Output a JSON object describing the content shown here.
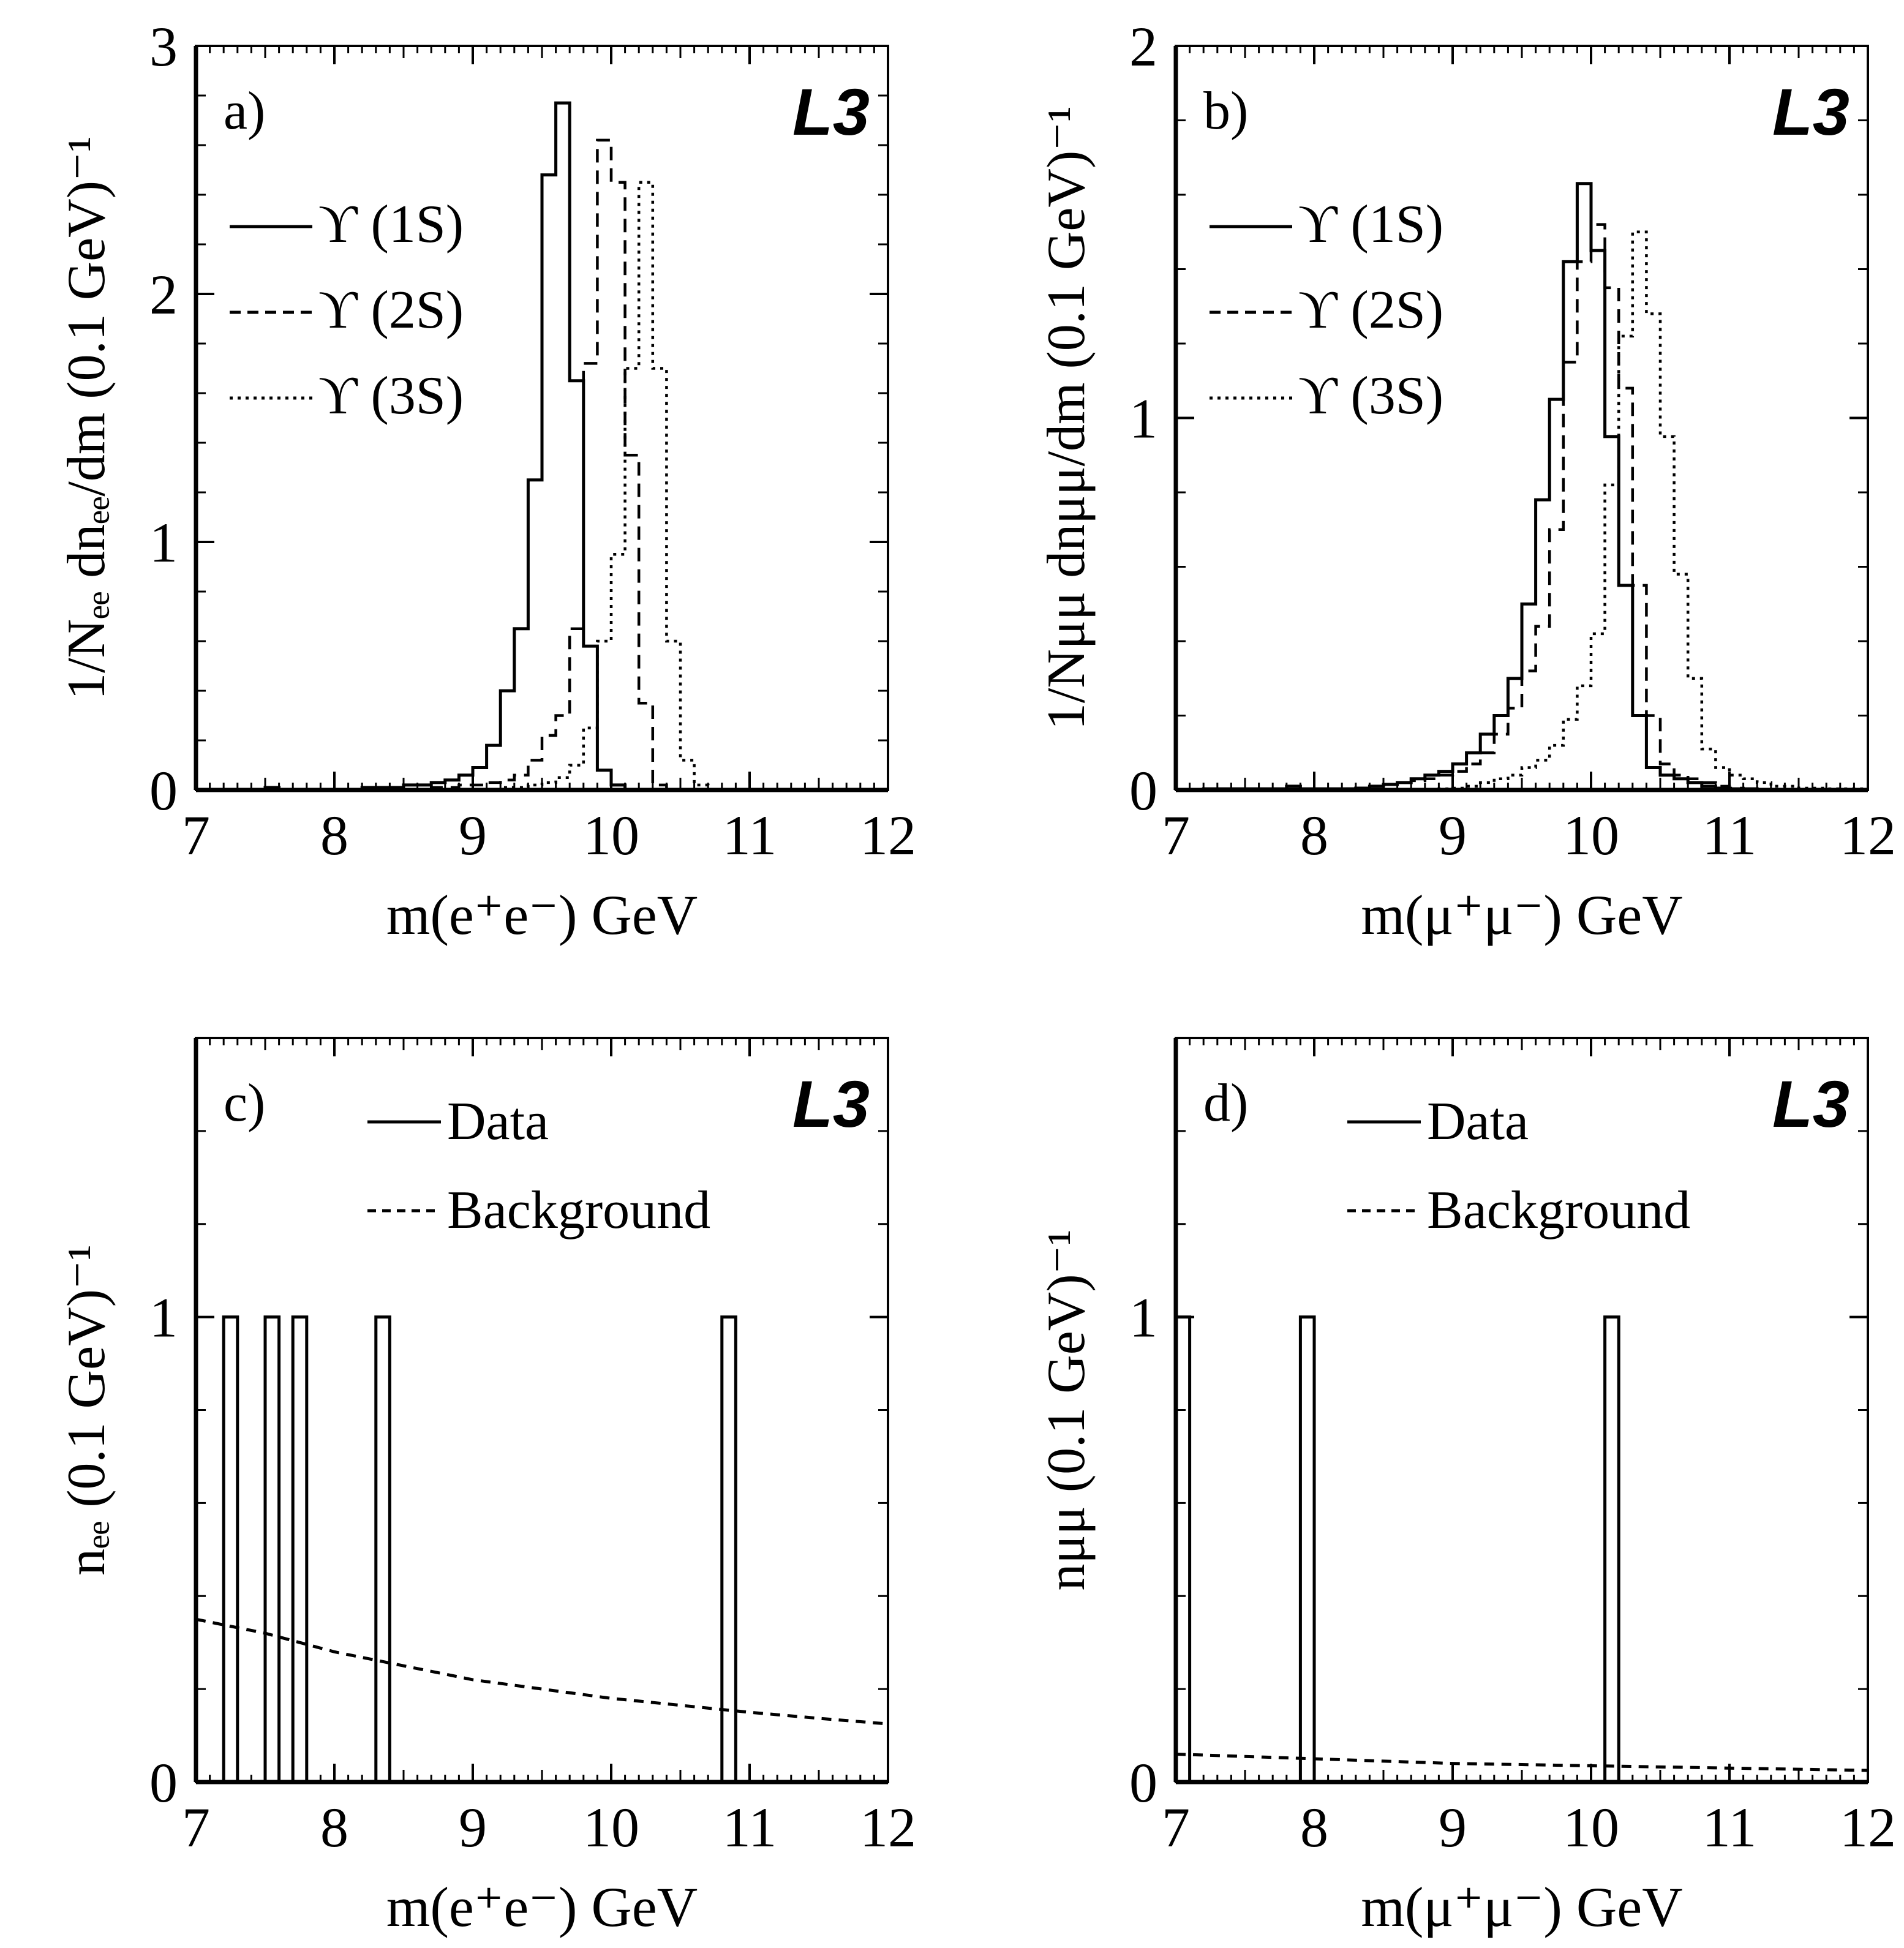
{
  "chart_data": [
    {
      "type": "histogram",
      "panel_label": "a)",
      "experiment": "L3",
      "xlabel": "m(e⁺e⁻)   GeV",
      "ylabel": "1/Nₑₑ dnₑₑ/dm   (0.1 GeV)⁻¹",
      "xlim": [
        7,
        12
      ],
      "ylim": [
        0,
        3
      ],
      "xticks": [
        "7",
        "8",
        "9",
        "10",
        "11",
        "12"
      ],
      "yticks": [
        "0",
        "1",
        "2",
        "3"
      ],
      "x_bin_edges_start": 7.0,
      "bin_width": 0.1,
      "legend": [
        "ϒ (1S)",
        "ϒ (2S)",
        "ϒ (3S)"
      ],
      "series": [
        {
          "name": "ϒ (1S)",
          "style": "solid",
          "values": [
            0,
            0,
            0,
            0,
            0,
            0.01,
            0,
            0,
            0,
            0,
            0,
            0,
            0.01,
            0.01,
            0.01,
            0.02,
            0.02,
            0.03,
            0.04,
            0.06,
            0.09,
            0.18,
            0.4,
            0.65,
            1.25,
            2.48,
            2.77,
            1.65,
            0.58,
            0.08,
            0.02,
            0,
            0,
            0,
            0,
            0,
            0,
            0,
            0,
            0,
            0,
            0,
            0,
            0,
            0,
            0,
            0,
            0,
            0,
            0
          ]
        },
        {
          "name": "ϒ (2S)",
          "style": "dashed",
          "values": [
            0,
            0,
            0,
            0,
            0,
            0,
            0,
            0,
            0,
            0,
            0,
            0,
            0,
            0,
            0,
            0,
            0,
            0.01,
            0.01,
            0.02,
            0.02,
            0.03,
            0.04,
            0.06,
            0.12,
            0.22,
            0.3,
            0.65,
            1.72,
            2.62,
            2.45,
            1.35,
            0.35,
            0.02,
            0,
            0,
            0,
            0,
            0,
            0,
            0,
            0,
            0,
            0,
            0,
            0,
            0,
            0,
            0,
            0
          ]
        },
        {
          "name": "ϒ (3S)",
          "style": "dotted",
          "values": [
            0,
            0,
            0,
            0,
            0,
            0,
            0,
            0,
            0,
            0,
            0,
            0,
            0,
            0,
            0,
            0,
            0,
            0,
            0,
            0,
            0,
            0,
            0.01,
            0.01,
            0.02,
            0.03,
            0.05,
            0.1,
            0.25,
            0.6,
            0.95,
            1.7,
            2.45,
            1.7,
            0.6,
            0.12,
            0.02,
            0,
            0,
            0,
            0,
            0,
            0,
            0,
            0,
            0,
            0,
            0,
            0,
            0
          ]
        }
      ]
    },
    {
      "type": "histogram",
      "panel_label": "b)",
      "experiment": "L3",
      "xlabel": "m(μ⁺μ⁻)   GeV",
      "ylabel": "1/Nμμ dnμμ/dm   (0.1 GeV)⁻¹",
      "xlim": [
        7,
        12
      ],
      "ylim": [
        0,
        2
      ],
      "xticks": [
        "7",
        "8",
        "9",
        "10",
        "11",
        "12"
      ],
      "yticks": [
        "0",
        "1",
        "2"
      ],
      "x_bin_edges_start": 7.0,
      "bin_width": 0.1,
      "legend": [
        "ϒ (1S)",
        "ϒ (2S)",
        "ϒ (3S)"
      ],
      "series": [
        {
          "name": "ϒ (1S)",
          "style": "solid",
          "values": [
            0,
            0,
            0.003,
            0.003,
            0.003,
            0.003,
            0.003,
            0.003,
            0.01,
            0.003,
            0.003,
            0.003,
            0.003,
            0.005,
            0.01,
            0.015,
            0.02,
            0.03,
            0.04,
            0.05,
            0.07,
            0.1,
            0.15,
            0.2,
            0.3,
            0.5,
            0.78,
            1.05,
            1.42,
            1.63,
            1.45,
            0.95,
            0.55,
            0.2,
            0.06,
            0.04,
            0.03,
            0.02,
            0.01,
            0.005,
            0.003,
            0.003,
            0,
            0,
            0,
            0,
            0,
            0,
            0,
            0
          ]
        },
        {
          "name": "ϒ (2S)",
          "style": "dashed",
          "values": [
            0,
            0,
            0,
            0,
            0,
            0,
            0,
            0,
            0,
            0,
            0,
            0,
            0.003,
            0.005,
            0.01,
            0.015,
            0.02,
            0.025,
            0.03,
            0.04,
            0.05,
            0.07,
            0.1,
            0.15,
            0.22,
            0.32,
            0.44,
            0.7,
            1.15,
            1.42,
            1.52,
            1.35,
            1.08,
            0.55,
            0.2,
            0.07,
            0.04,
            0.03,
            0.02,
            0.01,
            0.005,
            0,
            0,
            0,
            0,
            0,
            0,
            0,
            0,
            0
          ]
        },
        {
          "name": "ϒ (3S)",
          "style": "dotted",
          "values": [
            0,
            0,
            0,
            0,
            0,
            0,
            0,
            0,
            0,
            0,
            0,
            0,
            0,
            0,
            0,
            0,
            0,
            0,
            0,
            0.003,
            0.005,
            0.01,
            0.02,
            0.03,
            0.04,
            0.06,
            0.08,
            0.12,
            0.19,
            0.28,
            0.42,
            0.82,
            1.22,
            1.5,
            1.28,
            0.95,
            0.58,
            0.3,
            0.11,
            0.06,
            0.04,
            0.03,
            0.02,
            0.01,
            0.01,
            0.005,
            0.005,
            0.003,
            0.003,
            0.003
          ]
        }
      ]
    },
    {
      "type": "histogram",
      "panel_label": "c)",
      "experiment": "L3",
      "xlabel": "m(e⁺e⁻)   GeV",
      "ylabel": "nₑₑ   (0.1 GeV)⁻¹",
      "xlim": [
        7,
        12
      ],
      "ylim": [
        0,
        1.6
      ],
      "xticks": [
        "7",
        "8",
        "9",
        "10",
        "11",
        "12"
      ],
      "yticks": [
        "0",
        "1"
      ],
      "legend": [
        "Data",
        "Background"
      ],
      "data_bins": [
        {
          "x_start": 7.2,
          "x_end": 7.3,
          "count": 1
        },
        {
          "x_start": 7.5,
          "x_end": 7.6,
          "count": 1
        },
        {
          "x_start": 7.7,
          "x_end": 7.8,
          "count": 1
        },
        {
          "x_start": 8.3,
          "x_end": 8.4,
          "count": 1
        },
        {
          "x_start": 10.8,
          "x_end": 10.9,
          "count": 1
        }
      ],
      "background": {
        "name": "Background",
        "style": "dashed",
        "x": [
          7,
          7.5,
          8,
          8.5,
          9,
          9.5,
          10,
          10.5,
          11,
          11.5,
          12
        ],
        "y": [
          0.35,
          0.32,
          0.28,
          0.25,
          0.22,
          0.2,
          0.18,
          0.165,
          0.15,
          0.137,
          0.125
        ]
      }
    },
    {
      "type": "histogram",
      "panel_label": "d)",
      "experiment": "L3",
      "xlabel": "m(μ⁺μ⁻)   GeV",
      "ylabel": "nμμ   (0.1 GeV)⁻¹",
      "xlim": [
        7,
        12
      ],
      "ylim": [
        0,
        1.6
      ],
      "xticks": [
        "7",
        "8",
        "9",
        "10",
        "11",
        "12"
      ],
      "yticks": [
        "0",
        "1"
      ],
      "legend": [
        "Data",
        "Background"
      ],
      "data_bins": [
        {
          "x_start": 7.0,
          "x_end": 7.1,
          "count": 1
        },
        {
          "x_start": 7.9,
          "x_end": 8.0,
          "count": 1
        },
        {
          "x_start": 10.1,
          "x_end": 10.2,
          "count": 1
        }
      ],
      "background": {
        "name": "Background",
        "style": "dashed",
        "x": [
          7,
          8,
          9,
          10,
          11,
          12
        ],
        "y": [
          0.06,
          0.05,
          0.04,
          0.035,
          0.03,
          0.025
        ]
      }
    }
  ]
}
